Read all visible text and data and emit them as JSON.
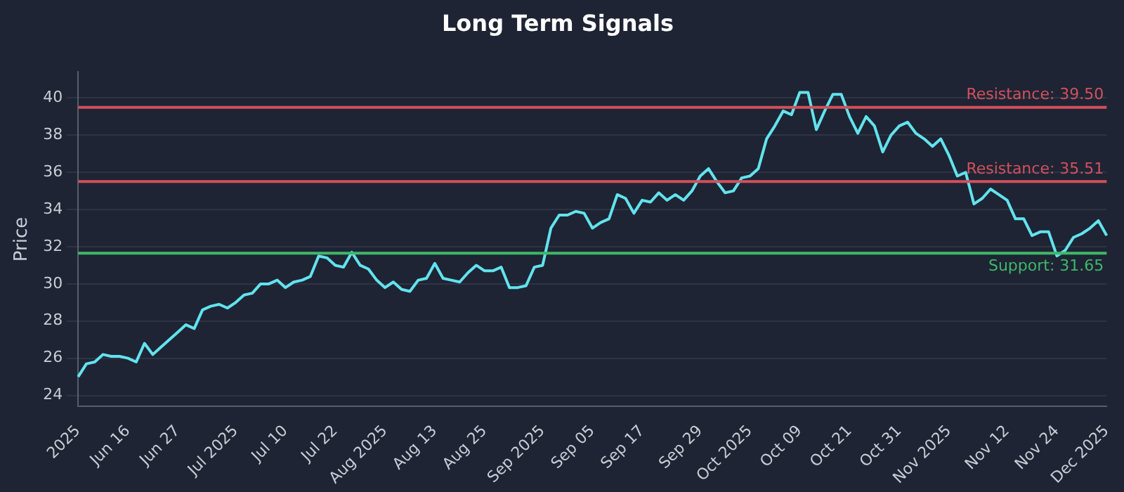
{
  "chart_data": {
    "type": "line",
    "title": "Long Term Signals",
    "ylabel": "Price",
    "categories": [
      "2025",
      null,
      null,
      null,
      null,
      null,
      "Jun 16",
      null,
      null,
      null,
      null,
      null,
      "Jun 27",
      null,
      null,
      null,
      null,
      null,
      null,
      "Jul 2025",
      null,
      null,
      null,
      null,
      null,
      "Jul 10",
      null,
      null,
      null,
      null,
      null,
      "Jul 22",
      null,
      null,
      null,
      null,
      null,
      "Aug 2025",
      null,
      null,
      null,
      null,
      null,
      "Aug 13",
      null,
      null,
      null,
      null,
      null,
      "Aug 25",
      null,
      null,
      null,
      null,
      null,
      null,
      "Sep 2025",
      null,
      null,
      null,
      null,
      null,
      "Sep 05",
      null,
      null,
      null,
      null,
      null,
      "Sep 17",
      null,
      null,
      null,
      null,
      null,
      null,
      "Sep 29",
      null,
      null,
      null,
      null,
      null,
      "Oct 2025",
      null,
      null,
      null,
      null,
      null,
      "Oct 09",
      null,
      null,
      null,
      null,
      null,
      "Oct 21",
      null,
      null,
      null,
      null,
      null,
      "Oct 31",
      null,
      null,
      null,
      null,
      null,
      "Nov 2025",
      null,
      null,
      null,
      null,
      null,
      null,
      "Nov 12",
      null,
      null,
      null,
      null,
      null,
      "Nov 24",
      null,
      null,
      null,
      null,
      null,
      "Dec 2025"
    ],
    "series": [
      {
        "color": "#62e3ee",
        "values": [
          25.0,
          25.7,
          25.8,
          26.2,
          26.1,
          26.1,
          26.0,
          25.8,
          26.8,
          26.2,
          26.6,
          27.0,
          27.4,
          27.8,
          27.6,
          28.6,
          28.8,
          28.9,
          28.7,
          29.0,
          29.4,
          29.5,
          30.0,
          30.0,
          30.2,
          29.8,
          30.1,
          30.2,
          30.4,
          31.5,
          31.4,
          31.0,
          30.9,
          31.7,
          31.0,
          30.8,
          30.2,
          29.8,
          30.1,
          29.7,
          29.6,
          30.2,
          30.3,
          31.1,
          30.3,
          30.2,
          30.1,
          30.6,
          31.0,
          30.7,
          30.7,
          30.9,
          29.8,
          29.8,
          29.9,
          30.9,
          31.0,
          33.0,
          33.7,
          33.7,
          33.9,
          33.8,
          33.0,
          33.3,
          33.5,
          34.8,
          34.6,
          33.8,
          34.5,
          34.4,
          34.9,
          34.5,
          34.8,
          34.5,
          35.0,
          35.8,
          36.2,
          35.5,
          34.9,
          35.0,
          35.7,
          35.8,
          36.2,
          37.8,
          38.5,
          39.3,
          39.1,
          40.3,
          40.3,
          38.3,
          39.3,
          40.2,
          40.2,
          39.0,
          38.1,
          39.0,
          38.5,
          37.1,
          38.0,
          38.5,
          38.7,
          38.1,
          37.8,
          37.4,
          37.8,
          36.9,
          35.8,
          36.0,
          34.3,
          34.6,
          35.1,
          34.8,
          34.5,
          33.5,
          33.5,
          32.6,
          32.8,
          32.8,
          31.5,
          31.8,
          32.5,
          32.7,
          33.0,
          33.4,
          32.6
        ]
      }
    ],
    "ylim": [
      23.4,
      41.4
    ],
    "yticks": [
      24,
      26,
      28,
      30,
      32,
      34,
      36,
      38,
      40
    ],
    "grid": "y",
    "marker": "none",
    "line_style": "solid",
    "ref_lines": [
      {
        "axis": "y",
        "value": 39.5,
        "label": "Resistance: 39.50",
        "color": "#d2505c"
      },
      {
        "axis": "y",
        "value": 35.51,
        "label": "Resistance: 35.51",
        "color": "#d2505c"
      },
      {
        "axis": "y",
        "value": 31.65,
        "label": "Support: 31.65",
        "color": "#3fb86a"
      }
    ]
  }
}
